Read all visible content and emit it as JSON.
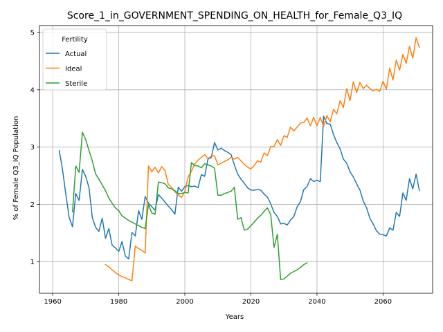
{
  "chart_data": {
    "type": "line",
    "title": "Score_1_in_GOVERNMENT_SPENDING_ON_HEALTH_for_Female_Q3_IQ",
    "xlabel": "Years",
    "ylabel": "% of Female Q3_IQ Population",
    "xlim": [
      1956,
      2075
    ],
    "ylim": [
      0.45,
      5.12
    ],
    "xticks": [
      1960,
      1980,
      2000,
      2020,
      2040,
      2060
    ],
    "yticks": [
      1,
      2,
      3,
      4,
      5
    ],
    "grid": true,
    "legend": {
      "title": "Fertility",
      "position": "top-left"
    },
    "series": [
      {
        "name": "Actual",
        "color": "#1f77b4",
        "points": [
          [
            1962,
            2.94
          ],
          [
            1963,
            2.6
          ],
          [
            1964,
            2.17
          ],
          [
            1965,
            1.77
          ],
          [
            1966,
            1.61
          ],
          [
            1967,
            2.19
          ],
          [
            1968,
            2.07
          ],
          [
            1969,
            2.61
          ],
          [
            1970,
            2.49
          ],
          [
            1971,
            2.29
          ],
          [
            1972,
            1.77
          ],
          [
            1973,
            1.6
          ],
          [
            1974,
            1.53
          ],
          [
            1975,
            1.76
          ],
          [
            1976,
            1.41
          ],
          [
            1977,
            1.58
          ],
          [
            1978,
            1.29
          ],
          [
            1979,
            1.24
          ],
          [
            1980,
            1.18
          ],
          [
            1981,
            1.35
          ],
          [
            1982,
            1.1
          ],
          [
            1983,
            1.05
          ],
          [
            1984,
            1.51
          ],
          [
            1985,
            1.45
          ],
          [
            1986,
            1.89
          ],
          [
            1987,
            1.74
          ],
          [
            1988,
            2.14
          ],
          [
            1989,
            2.02
          ],
          [
            1990,
            1.96
          ],
          [
            1991,
            1.9
          ],
          [
            1992,
            2.17
          ],
          [
            1993,
            2.11
          ],
          [
            1994,
            2.04
          ],
          [
            1995,
            1.97
          ],
          [
            1996,
            1.91
          ],
          [
            1997,
            1.83
          ],
          [
            1998,
            2.3
          ],
          [
            1999,
            2.23
          ],
          [
            2000,
            2.31
          ],
          [
            2001,
            2.33
          ],
          [
            2002,
            2.31
          ],
          [
            2003,
            2.32
          ],
          [
            2004,
            2.29
          ],
          [
            2005,
            2.52
          ],
          [
            2006,
            2.49
          ],
          [
            2007,
            2.79
          ],
          [
            2008,
            2.82
          ],
          [
            2009,
            3.08
          ],
          [
            2010,
            2.95
          ],
          [
            2011,
            2.98
          ],
          [
            2012,
            2.94
          ],
          [
            2013,
            2.91
          ],
          [
            2014,
            2.87
          ],
          [
            2015,
            2.69
          ],
          [
            2016,
            2.53
          ],
          [
            2017,
            2.44
          ],
          [
            2018,
            2.37
          ],
          [
            2019,
            2.29
          ],
          [
            2020,
            2.25
          ],
          [
            2021,
            2.25
          ],
          [
            2022,
            2.26
          ],
          [
            2023,
            2.25
          ],
          [
            2024,
            2.18
          ],
          [
            2025,
            2.13
          ],
          [
            2026,
            2.01
          ],
          [
            2027,
            1.86
          ],
          [
            2028,
            1.79
          ],
          [
            2029,
            1.66
          ],
          [
            2030,
            1.67
          ],
          [
            2031,
            1.64
          ],
          [
            2032,
            1.73
          ],
          [
            2033,
            1.79
          ],
          [
            2034,
            1.96
          ],
          [
            2035,
            2.05
          ],
          [
            2036,
            2.26
          ],
          [
            2037,
            2.31
          ],
          [
            2038,
            2.45
          ],
          [
            2039,
            2.4
          ],
          [
            2040,
            2.42
          ],
          [
            2041,
            2.4
          ],
          [
            2042,
            3.54
          ],
          [
            2043,
            3.41
          ],
          [
            2044,
            3.4
          ],
          [
            2045,
            3.22
          ],
          [
            2046,
            3.08
          ],
          [
            2047,
            2.97
          ],
          [
            2048,
            2.79
          ],
          [
            2049,
            2.72
          ],
          [
            2050,
            2.57
          ],
          [
            2051,
            2.48
          ],
          [
            2052,
            2.36
          ],
          [
            2053,
            2.25
          ],
          [
            2054,
            2.06
          ],
          [
            2055,
            1.94
          ],
          [
            2056,
            1.76
          ],
          [
            2057,
            1.66
          ],
          [
            2058,
            1.54
          ],
          [
            2059,
            1.48
          ],
          [
            2060,
            1.47
          ],
          [
            2061,
            1.45
          ],
          [
            2062,
            1.59
          ],
          [
            2063,
            1.55
          ],
          [
            2064,
            1.86
          ],
          [
            2065,
            1.79
          ],
          [
            2066,
            2.2
          ],
          [
            2067,
            2.07
          ],
          [
            2068,
            2.45
          ],
          [
            2069,
            2.27
          ],
          [
            2070,
            2.53
          ],
          [
            2071,
            2.24
          ]
        ]
      },
      {
        "name": "Ideal",
        "color": "#ff7f0e",
        "points": [
          [
            1976,
            0.95
          ],
          [
            1977,
            0.91
          ],
          [
            1978,
            0.86
          ],
          [
            1979,
            0.81
          ],
          [
            1980,
            0.77
          ],
          [
            1981,
            0.74
          ],
          [
            1982,
            0.72
          ],
          [
            1983,
            0.69
          ],
          [
            1984,
            0.67
          ],
          [
            1985,
            1.27
          ],
          [
            1986,
            1.23
          ],
          [
            1987,
            1.2
          ],
          [
            1988,
            1.15
          ],
          [
            1989,
            2.67
          ],
          [
            1990,
            2.57
          ],
          [
            1991,
            2.65
          ],
          [
            1992,
            2.55
          ],
          [
            1993,
            2.66
          ],
          [
            1994,
            2.59
          ],
          [
            1995,
            2.35
          ],
          [
            1996,
            2.3
          ],
          [
            1997,
            2.22
          ],
          [
            1998,
            2.17
          ],
          [
            1999,
            2.12
          ],
          [
            2000,
            2.23
          ],
          [
            2001,
            2.48
          ],
          [
            2002,
            2.58
          ],
          [
            2003,
            2.71
          ],
          [
            2004,
            2.77
          ],
          [
            2005,
            2.82
          ],
          [
            2006,
            2.87
          ],
          [
            2007,
            2.8
          ],
          [
            2008,
            2.84
          ],
          [
            2009,
            2.85
          ],
          [
            2010,
            2.69
          ],
          [
            2011,
            2.72
          ],
          [
            2012,
            2.75
          ],
          [
            2013,
            2.78
          ],
          [
            2014,
            2.82
          ],
          [
            2015,
            2.79
          ],
          [
            2016,
            2.82
          ],
          [
            2017,
            2.76
          ],
          [
            2018,
            2.7
          ],
          [
            2019,
            2.65
          ],
          [
            2020,
            2.62
          ],
          [
            2021,
            2.68
          ],
          [
            2022,
            2.76
          ],
          [
            2023,
            2.74
          ],
          [
            2024,
            2.9
          ],
          [
            2025,
            2.85
          ],
          [
            2026,
            3.01
          ],
          [
            2027,
            3.01
          ],
          [
            2028,
            3.13
          ],
          [
            2029,
            3.03
          ],
          [
            2030,
            3.2
          ],
          [
            2031,
            3.17
          ],
          [
            2032,
            3.35
          ],
          [
            2033,
            3.28
          ],
          [
            2034,
            3.35
          ],
          [
            2035,
            3.42
          ],
          [
            2036,
            3.43
          ],
          [
            2037,
            3.51
          ],
          [
            2038,
            3.37
          ],
          [
            2039,
            3.52
          ],
          [
            2040,
            3.37
          ],
          [
            2041,
            3.52
          ],
          [
            2042,
            3.36
          ],
          [
            2043,
            3.55
          ],
          [
            2044,
            3.44
          ],
          [
            2045,
            3.66
          ],
          [
            2046,
            3.58
          ],
          [
            2047,
            3.81
          ],
          [
            2048,
            3.69
          ],
          [
            2049,
            4.02
          ],
          [
            2050,
            3.81
          ],
          [
            2051,
            4.14
          ],
          [
            2052,
            3.95
          ],
          [
            2053,
            4.13
          ],
          [
            2054,
            4.02
          ],
          [
            2055,
            4.08
          ],
          [
            2056,
            4.02
          ],
          [
            2057,
            3.98
          ],
          [
            2058,
            4.01
          ],
          [
            2059,
            3.97
          ],
          [
            2060,
            4.15
          ],
          [
            2061,
            4.01
          ],
          [
            2062,
            4.38
          ],
          [
            2063,
            4.17
          ],
          [
            2064,
            4.52
          ],
          [
            2065,
            4.34
          ],
          [
            2066,
            4.62
          ],
          [
            2067,
            4.46
          ],
          [
            2068,
            4.76
          ],
          [
            2069,
            4.55
          ],
          [
            2070,
            4.91
          ],
          [
            2071,
            4.74
          ]
        ]
      },
      {
        "name": "Sterile",
        "color": "#2ca02c",
        "points": [
          [
            1966,
            1.87
          ],
          [
            1967,
            2.67
          ],
          [
            1968,
            2.56
          ],
          [
            1969,
            3.26
          ],
          [
            1970,
            3.13
          ],
          [
            1971,
            2.94
          ],
          [
            1972,
            2.76
          ],
          [
            1973,
            2.53
          ],
          [
            1974,
            2.44
          ],
          [
            1975,
            2.34
          ],
          [
            1976,
            2.24
          ],
          [
            1977,
            2.11
          ],
          [
            1978,
            2.02
          ],
          [
            1979,
            1.94
          ],
          [
            1980,
            1.89
          ],
          [
            1981,
            1.8
          ],
          [
            1982,
            1.76
          ],
          [
            1983,
            1.72
          ],
          [
            1984,
            1.69
          ],
          [
            1985,
            1.66
          ],
          [
            1986,
            1.63
          ],
          [
            1987,
            1.6
          ],
          [
            1988,
            1.58
          ],
          [
            1989,
            2.0
          ],
          [
            1990,
            1.85
          ],
          [
            1991,
            1.83
          ],
          [
            1992,
            2.39
          ],
          [
            1993,
            2.38
          ],
          [
            1994,
            2.36
          ],
          [
            1995,
            2.29
          ],
          [
            1996,
            2.27
          ],
          [
            1997,
            2.24
          ],
          [
            1998,
            2.19
          ],
          [
            1999,
            2.19
          ],
          [
            2000,
            2.21
          ],
          [
            2001,
            2.2
          ],
          [
            2002,
            2.73
          ],
          [
            2003,
            2.68
          ],
          [
            2004,
            2.67
          ],
          [
            2005,
            2.64
          ],
          [
            2006,
            2.71
          ],
          [
            2007,
            2.69
          ],
          [
            2008,
            2.67
          ],
          [
            2009,
            2.63
          ],
          [
            2010,
            2.16
          ],
          [
            2011,
            2.16
          ],
          [
            2012,
            2.19
          ],
          [
            2013,
            2.21
          ],
          [
            2014,
            2.23
          ],
          [
            2015,
            2.3
          ],
          [
            2016,
            1.74
          ],
          [
            2017,
            1.77
          ],
          [
            2018,
            1.55
          ],
          [
            2019,
            1.57
          ],
          [
            2020,
            1.63
          ],
          [
            2021,
            1.69
          ],
          [
            2022,
            1.76
          ],
          [
            2023,
            1.81
          ],
          [
            2024,
            1.88
          ],
          [
            2025,
            1.94
          ],
          [
            2026,
            1.82
          ],
          [
            2027,
            1.25
          ],
          [
            2028,
            1.48
          ],
          [
            2029,
            0.69
          ],
          [
            2030,
            0.7
          ],
          [
            2031,
            0.75
          ],
          [
            2032,
            0.8
          ],
          [
            2033,
            0.83
          ],
          [
            2034,
            0.86
          ],
          [
            2035,
            0.9
          ],
          [
            2036,
            0.95
          ],
          [
            2037,
            0.98
          ]
        ]
      }
    ]
  }
}
